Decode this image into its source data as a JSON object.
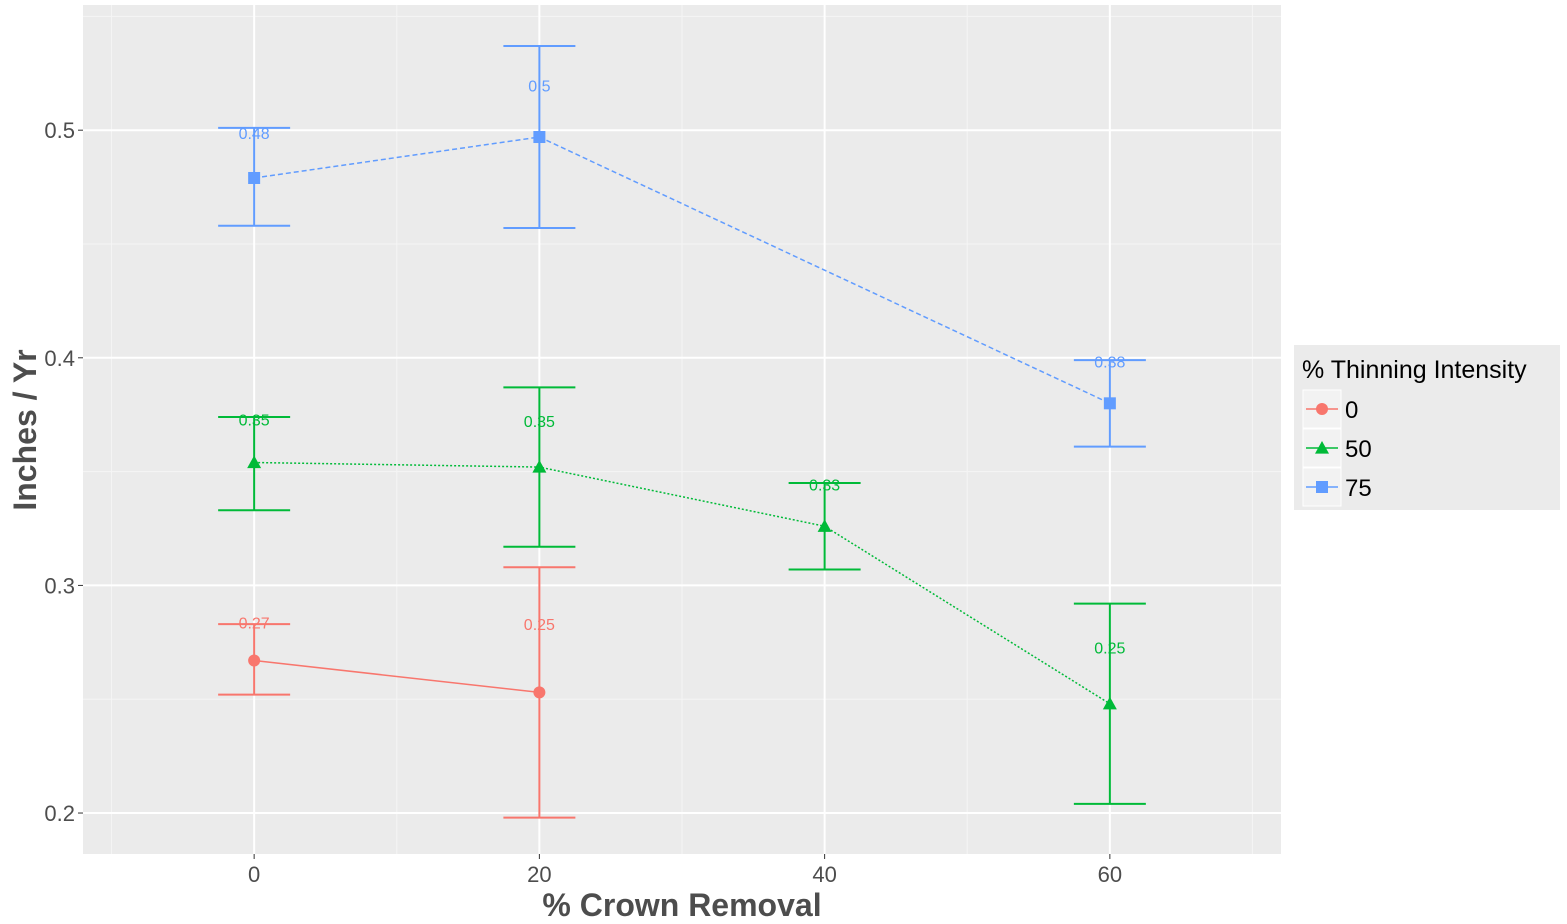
{
  "chart_data": {
    "type": "line",
    "title": "",
    "xlabel": "% Crown Removal",
    "ylabel": "Inches / Yr",
    "xlim": [
      -12,
      72
    ],
    "ylim": [
      0.182,
      0.555
    ],
    "x_ticks": [
      0,
      20,
      40,
      60
    ],
    "x_tick_labels": [
      "0",
      "20",
      "40",
      "60"
    ],
    "y_ticks": [
      0.2,
      0.3,
      0.4,
      0.5
    ],
    "y_tick_labels": [
      "0.2",
      "0.3",
      "0.4",
      "0.5"
    ],
    "grid": true,
    "legend": {
      "title": "% Thinning Intensity",
      "position": "right"
    },
    "series": [
      {
        "name": "0",
        "color": "#F8766D",
        "marker": "circle",
        "line_style": "solid",
        "points": [
          {
            "x": 0,
            "y": 0.267,
            "ymin": 0.252,
            "ymax": 0.283,
            "label": "0.27"
          },
          {
            "x": 20,
            "y": 0.253,
            "ymin": 0.198,
            "ymax": 0.308,
            "label": "0.25"
          }
        ]
      },
      {
        "name": "50",
        "color": "#00BA38",
        "marker": "triangle",
        "line_style": "dotted",
        "points": [
          {
            "x": 0,
            "y": 0.354,
            "ymin": 0.333,
            "ymax": 0.374,
            "label": "0.35"
          },
          {
            "x": 20,
            "y": 0.352,
            "ymin": 0.317,
            "ymax": 0.387,
            "label": "0.35"
          },
          {
            "x": 40,
            "y": 0.326,
            "ymin": 0.307,
            "ymax": 0.345,
            "label": "0.33"
          },
          {
            "x": 60,
            "y": 0.248,
            "ymin": 0.204,
            "ymax": 0.292,
            "label": "0.25"
          }
        ]
      },
      {
        "name": "75",
        "color": "#619CFF",
        "marker": "square",
        "line_style": "dashed",
        "points": [
          {
            "x": 0,
            "y": 0.479,
            "ymin": 0.458,
            "ymax": 0.501,
            "label": "0.48"
          },
          {
            "x": 20,
            "y": 0.497,
            "ymin": 0.457,
            "ymax": 0.537,
            "label": "0.5"
          },
          {
            "x": 60,
            "y": 0.38,
            "ymin": 0.361,
            "ymax": 0.399,
            "label": "0.38"
          }
        ]
      }
    ]
  }
}
